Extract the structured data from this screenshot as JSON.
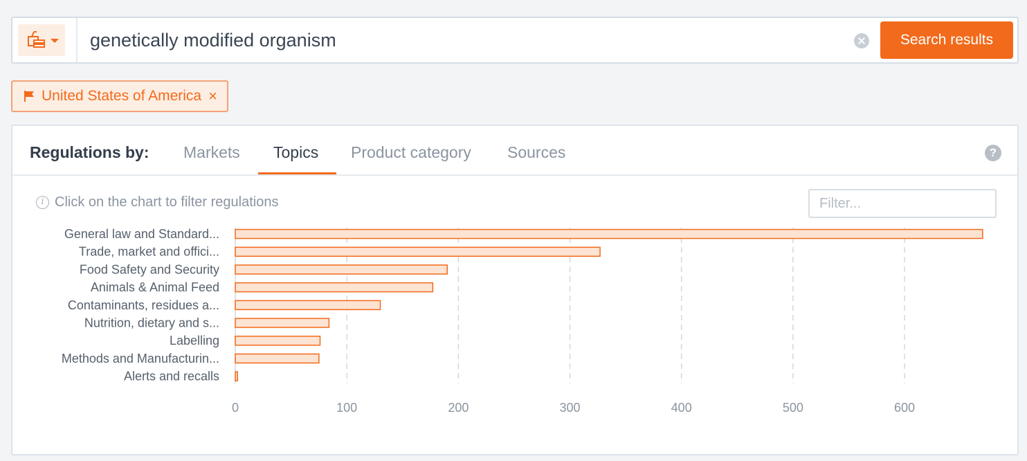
{
  "search": {
    "query": "genetically modified organism",
    "button_label": "Search results",
    "category_icon": "food-drink-icon"
  },
  "filters": {
    "country_chip": "United States of America",
    "chip_close": "×"
  },
  "panel": {
    "label": "Regulations by:",
    "tabs": [
      "Markets",
      "Topics",
      "Product category",
      "Sources"
    ],
    "active_tab": "Topics",
    "help": "?",
    "hint": "Click on the chart to filter regulations",
    "filter_placeholder": "Filter..."
  },
  "colors": {
    "accent": "#f26a1b",
    "bar_fill": "#fde3d2"
  },
  "chart_data": {
    "type": "bar",
    "orientation": "horizontal",
    "categories": [
      "General law and Standard...",
      "Trade, market and offici...",
      "Food Safety and Security",
      "Animals & Animal Feed",
      "Contaminants, residues a...",
      "Nutrition, dietary and s...",
      "Labelling",
      "Methods and Manufacturin...",
      "Alerts and recalls"
    ],
    "values": [
      670,
      327,
      190,
      177,
      130,
      84,
      76,
      75,
      2
    ],
    "xlim": [
      0,
      680
    ],
    "xticks": [
      0,
      100,
      200,
      300,
      400,
      500,
      600
    ],
    "grid": "vertical-dashed"
  }
}
